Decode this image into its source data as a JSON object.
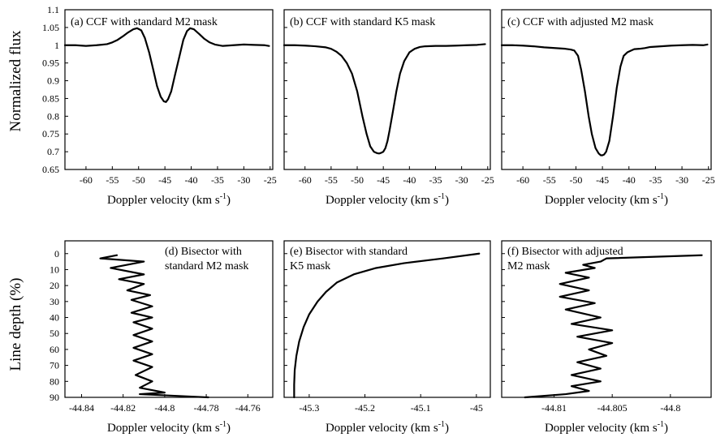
{
  "figure": {
    "top_ylabel": "Normalized flux",
    "bottom_ylabel": "Line depth (%)"
  },
  "chart_data": [
    {
      "type": "line",
      "title": "(a) CCF with standard M2 mask",
      "xlabel": "Doppler velocity (km s",
      "xlabel_sup": "-1",
      "xlabel_end": ")",
      "xlim": [
        -64,
        -24.5
      ],
      "ylim": [
        0.65,
        1.1
      ],
      "xticks": [
        -60,
        -55,
        -50,
        -45,
        -40,
        -35,
        -30,
        -25
      ],
      "yticks": [
        0.65,
        0.7,
        0.75,
        0.8,
        0.85,
        0.9,
        0.95,
        1,
        1.05,
        1.1
      ],
      "x": [
        -64,
        -62,
        -60,
        -58,
        -56,
        -55,
        -54,
        -53,
        -52,
        -51,
        -50.3,
        -49.5,
        -48.8,
        -48,
        -47.2,
        -46.5,
        -45.8,
        -45.2,
        -44.8,
        -44.4,
        -43.8,
        -43.1,
        -42.3,
        -41.5,
        -40.8,
        -40.2,
        -39.5,
        -38.5,
        -37.5,
        -36.5,
        -35.5,
        -34,
        -32,
        -30,
        -28,
        -26,
        -25.2
      ],
      "y": [
        1.0,
        1.0,
        0.998,
        1.0,
        1.003,
        1.008,
        1.015,
        1.025,
        1.036,
        1.045,
        1.048,
        1.042,
        1.02,
        0.98,
        0.93,
        0.885,
        0.855,
        0.842,
        0.84,
        0.848,
        0.87,
        0.915,
        0.965,
        1.015,
        1.04,
        1.048,
        1.045,
        1.032,
        1.018,
        1.008,
        1.002,
        0.998,
        1.0,
        1.002,
        1.001,
        1.0,
        0.998
      ]
    },
    {
      "type": "line",
      "title": "(b) CCF with standard K5 mask",
      "xlabel": "Doppler velocity (km s",
      "xlabel_sup": "-1",
      "xlabel_end": ")",
      "xlim": [
        -64,
        -24.5
      ],
      "ylim": [
        0.65,
        1.1
      ],
      "xticks": [
        -60,
        -55,
        -50,
        -45,
        -40,
        -35,
        -30,
        -25
      ],
      "yticks": [
        0.65,
        0.7,
        0.75,
        0.8,
        0.85,
        0.9,
        0.95,
        1,
        1.05,
        1.1
      ],
      "x": [
        -64,
        -62,
        -60,
        -58,
        -56,
        -55,
        -54,
        -53,
        -52,
        -51,
        -50,
        -49,
        -48.2,
        -47.5,
        -46.8,
        -46.2,
        -45.8,
        -45.4,
        -45,
        -44.6,
        -44.2,
        -43.8,
        -43.2,
        -42.5,
        -41.8,
        -41,
        -40,
        -39,
        -38,
        -37,
        -35,
        -33,
        -31,
        -29,
        -27,
        -25.5
      ],
      "y": [
        1.0,
        1.0,
        0.999,
        0.997,
        0.994,
        0.99,
        0.982,
        0.97,
        0.95,
        0.92,
        0.87,
        0.8,
        0.75,
        0.715,
        0.7,
        0.696,
        0.695,
        0.697,
        0.7,
        0.71,
        0.73,
        0.76,
        0.81,
        0.87,
        0.92,
        0.955,
        0.98,
        0.99,
        0.995,
        0.997,
        0.998,
        0.998,
        0.999,
        1.0,
        1.001,
        1.003
      ]
    },
    {
      "type": "line",
      "title": "(c) CCF with adjusted M2 mask",
      "xlabel": "Doppler velocity (km s",
      "xlabel_sup": "-1",
      "xlabel_end": ")",
      "xlim": [
        -64,
        -24.5
      ],
      "ylim": [
        0.65,
        1.1
      ],
      "xticks": [
        -60,
        -55,
        -50,
        -45,
        -40,
        -35,
        -30,
        -25
      ],
      "yticks": [
        0.65,
        0.7,
        0.75,
        0.8,
        0.85,
        0.9,
        0.95,
        1,
        1.05,
        1.1
      ],
      "x": [
        -64,
        -62,
        -60,
        -58,
        -56,
        -54,
        -52,
        -51,
        -50.3,
        -49.6,
        -49,
        -48.3,
        -47.6,
        -47,
        -46.3,
        -45.7,
        -45.3,
        -45,
        -44.7,
        -44.3,
        -43.7,
        -43,
        -42.3,
        -41.6,
        -41,
        -40.3,
        -39.6,
        -39,
        -38,
        -37,
        -36,
        -34,
        -32,
        -30,
        -28,
        -26,
        -25.2
      ],
      "y": [
        1.0,
        1.0,
        0.999,
        0.997,
        0.994,
        0.992,
        0.99,
        0.988,
        0.985,
        0.97,
        0.93,
        0.87,
        0.8,
        0.75,
        0.71,
        0.695,
        0.69,
        0.69,
        0.692,
        0.7,
        0.73,
        0.8,
        0.88,
        0.94,
        0.97,
        0.98,
        0.985,
        0.989,
        0.99,
        0.992,
        0.995,
        0.997,
        0.999,
        1.0,
        1.001,
        1.0,
        1.002
      ]
    },
    {
      "type": "line",
      "title": "(d) Bisector with standard M2 mask",
      "title_lines": [
        "(d) Bisector with",
        "standard M2 mask"
      ],
      "xlabel": "Doppler velocity (km s",
      "xlabel_sup": "-1",
      "xlabel_end": ")",
      "xlim": [
        -44.848,
        -44.748
      ],
      "ylim": [
        90,
        -8
      ],
      "y_inverted": true,
      "xticks": [
        -44.84,
        -44.82,
        -44.8,
        -44.78,
        -44.76
      ],
      "xtick_labels": [
        "-44.84",
        "-44.82",
        "-44.8",
        "-44.78",
        "-44.76"
      ],
      "yticks": [
        0,
        10,
        20,
        30,
        40,
        50,
        60,
        70,
        80,
        90
      ],
      "x": [
        -44.823,
        -44.831,
        -44.81,
        -44.826,
        -44.81,
        -44.822,
        -44.81,
        -44.818,
        -44.807,
        -44.816,
        -44.806,
        -44.816,
        -44.806,
        -44.815,
        -44.806,
        -44.815,
        -44.806,
        -44.815,
        -44.806,
        -44.815,
        -44.806,
        -44.814,
        -44.806,
        -44.812,
        -44.8,
        -44.812,
        -44.779
      ],
      "y": [
        1,
        3,
        5,
        9,
        13,
        16,
        19,
        23,
        26,
        29,
        33,
        37,
        40,
        43,
        47,
        51,
        55,
        59,
        63,
        67,
        71,
        76,
        80,
        84,
        87,
        88,
        90
      ]
    },
    {
      "type": "line",
      "title": "(e) Bisector with standard K5 mask",
      "title_lines": [
        "(e) Bisector with standard",
        "K5 mask"
      ],
      "xlabel": "Doppler velocity (km s",
      "xlabel_sup": "-1",
      "xlabel_end": ")",
      "xlim": [
        -45.345,
        -44.975
      ],
      "ylim": [
        90,
        -8
      ],
      "y_inverted": true,
      "xticks": [
        -45.3,
        -45.2,
        -45.1,
        -45
      ],
      "xtick_labels": [
        "-45.3",
        "-45.2",
        "-45.1",
        "-45"
      ],
      "yticks": [
        0,
        10,
        20,
        30,
        40,
        50,
        60,
        70,
        80,
        90
      ],
      "x": [
        -44.995,
        -45.06,
        -45.13,
        -45.18,
        -45.22,
        -45.25,
        -45.27,
        -45.285,
        -45.3,
        -45.31,
        -45.318,
        -45.323,
        -45.326,
        -45.327,
        -45.327
      ],
      "y": [
        0,
        3,
        6,
        9,
        13,
        18,
        24,
        30,
        38,
        46,
        55,
        64,
        73,
        82,
        90
      ]
    },
    {
      "type": "line",
      "title": "(f) Bisector with adjusted M2 mask",
      "title_lines": [
        "(f) Bisector with adjusted",
        "M2 mask"
      ],
      "xlabel": "Doppler velocity (km s",
      "xlabel_sup": "-1",
      "xlabel_end": ")",
      "xlim": [
        -44.8145,
        -44.7965
      ],
      "ylim": [
        90,
        -8
      ],
      "y_inverted": true,
      "xticks": [
        -44.81,
        -44.805,
        -44.8
      ],
      "xtick_labels": [
        "-44.81",
        "-44.805",
        "-44.8"
      ],
      "yticks": [
        0,
        10,
        20,
        30,
        40,
        50,
        60,
        70,
        80,
        90
      ],
      "x": [
        -44.7973,
        -44.8055,
        -44.806,
        -44.8075,
        -44.8065,
        -44.809,
        -44.807,
        -44.8095,
        -44.807,
        -44.8095,
        -44.8065,
        -44.809,
        -44.806,
        -44.8085,
        -44.805,
        -44.808,
        -44.805,
        -44.807,
        -44.8055,
        -44.808,
        -44.806,
        -44.8085,
        -44.806,
        -44.8085,
        -44.807,
        -44.809,
        -44.8125
      ],
      "y": [
        1,
        3,
        5,
        7,
        9,
        12,
        15,
        19,
        23,
        27,
        31,
        35,
        40,
        44,
        48,
        52,
        56,
        60,
        64,
        68,
        72,
        76,
        80,
        83,
        86,
        88,
        90
      ]
    }
  ]
}
